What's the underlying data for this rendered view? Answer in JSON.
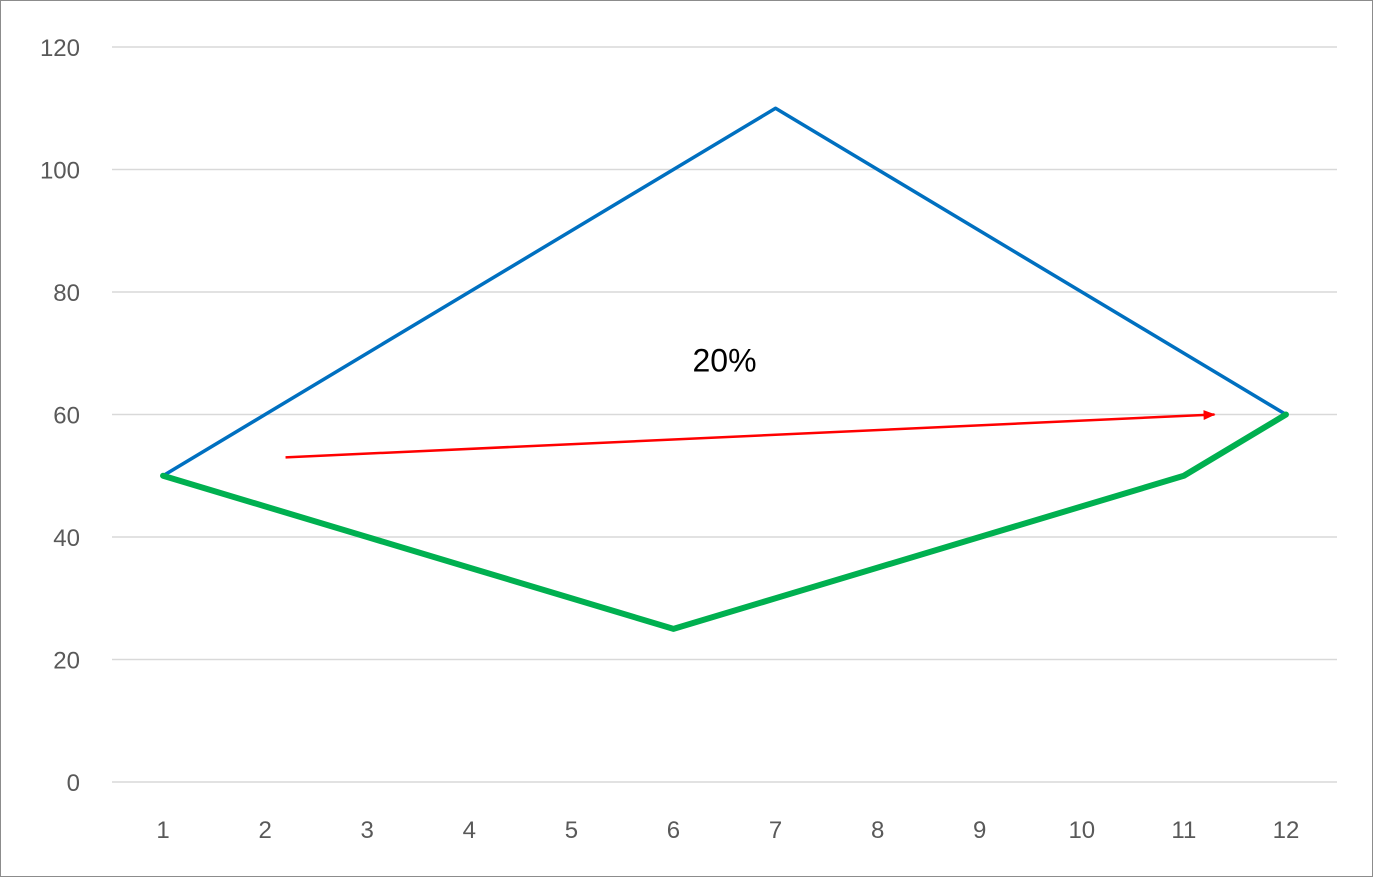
{
  "chart_data": {
    "type": "line",
    "title": "",
    "xlabel": "",
    "ylabel": "",
    "x": [
      1,
      2,
      3,
      4,
      5,
      6,
      7,
      8,
      9,
      10,
      11,
      12
    ],
    "xlim": [
      0.5,
      12.5
    ],
    "ylim": [
      0,
      120
    ],
    "y_ticks": [
      0,
      20,
      40,
      60,
      80,
      100,
      120
    ],
    "grid": true,
    "legend": "none",
    "series": [
      {
        "values": [
          50,
          60,
          70,
          80,
          90,
          100,
          110,
          100,
          90,
          80,
          70,
          60
        ],
        "color": "#0070C0"
      },
      {
        "values": [
          50,
          45,
          40,
          35,
          30,
          25,
          30,
          35,
          40,
          45,
          50,
          60
        ],
        "color": "#00B050"
      }
    ],
    "annotations": [
      {
        "text": "20%",
        "x": 6.5,
        "y": 67
      },
      {
        "type": "arrow",
        "from": [
          2.2,
          53
        ],
        "to": [
          11.3,
          60
        ],
        "color": "#FF0000"
      }
    ],
    "gridline_color": "#d9d9d9"
  }
}
